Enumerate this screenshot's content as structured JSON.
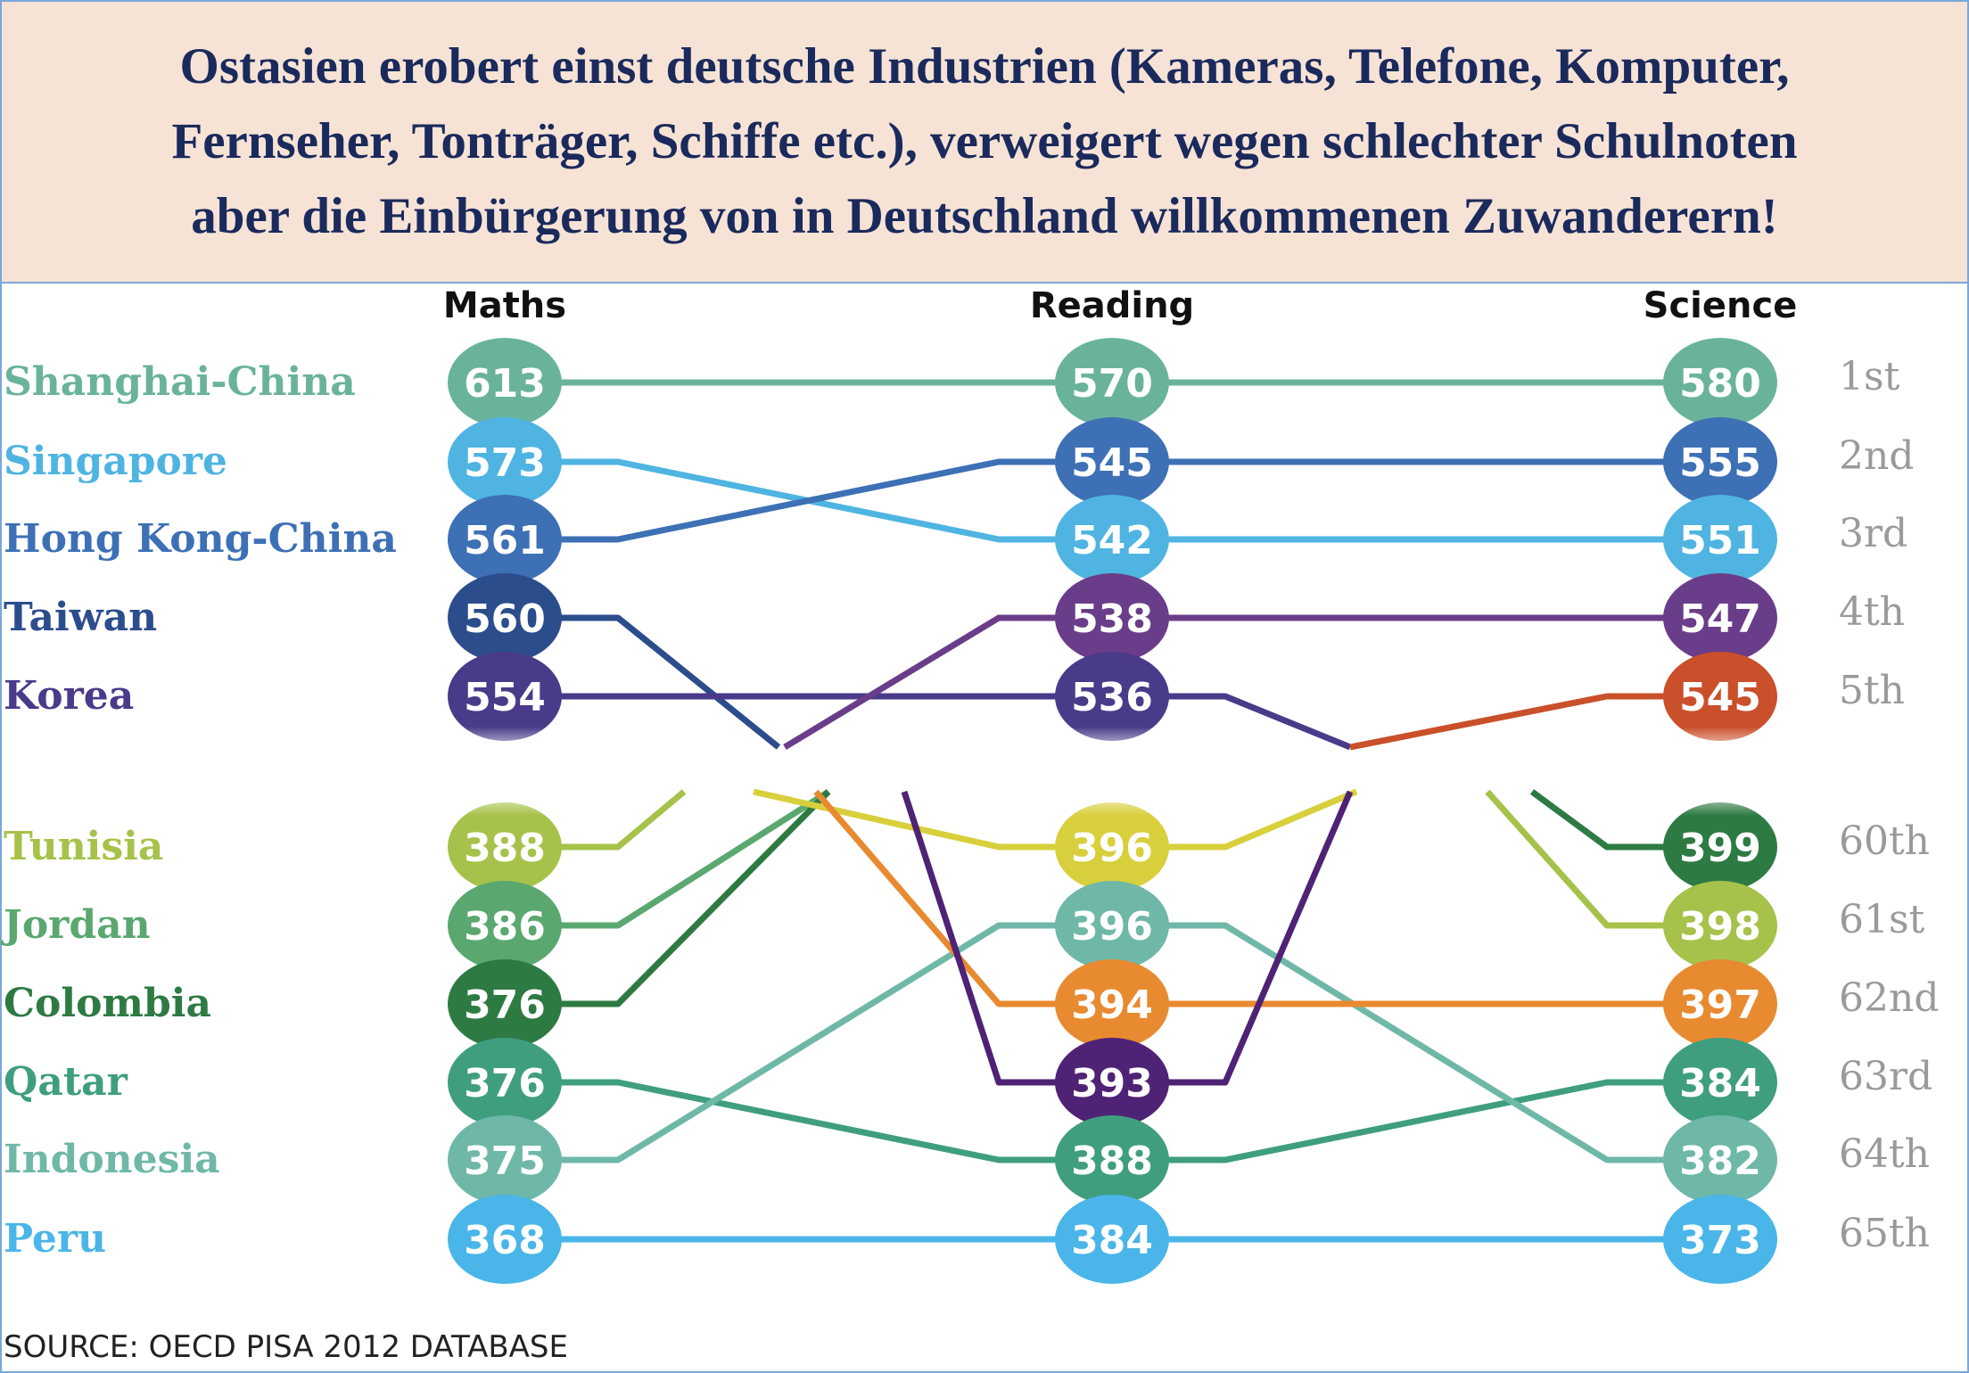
{
  "title_lines": [
    "Ostasien erobert einst deutsche Industrien (Kameras, Telefone, Komputer,",
    "Fernseher, Tonträger, Schiffe etc.), verweigert wegen schlechter Schulnoten",
    "aber die Einbürgerung von in Deutschland willkommenen Zuwanderern!"
  ],
  "chart_data": {
    "type": "bump",
    "columns": [
      "Maths",
      "Reading",
      "Science"
    ],
    "source": "SOURCE: OECD PISA 2012 DATABASE",
    "rows": [
      {
        "country": "Shanghai-China",
        "rank": "1st",
        "color": "#6ab39b"
      },
      {
        "country": "Singapore",
        "rank": "2nd",
        "color": "#4fb4e2"
      },
      {
        "country": "Hong Kong-China",
        "rank": "3rd",
        "color": "#3d70b5"
      },
      {
        "country": "Taiwan",
        "rank": "4th",
        "color": "#2c4d8c"
      },
      {
        "country": "Korea",
        "rank": "5th",
        "color": "#4a3a8a"
      },
      {
        "country": "Tunisia",
        "rank": "60th",
        "color": "#a6c24a"
      },
      {
        "country": "Jordan",
        "rank": "61st",
        "color": "#5aa870"
      },
      {
        "country": "Colombia",
        "rank": "62nd",
        "color": "#2e7a43"
      },
      {
        "country": "Qatar",
        "rank": "63rd",
        "color": "#3f9e7e"
      },
      {
        "country": "Indonesia",
        "rank": "64th",
        "color": "#6fb8a8"
      },
      {
        "country": "Peru",
        "rank": "65th",
        "color": "#4ab5e8"
      }
    ],
    "scores": [
      [
        {
          "v": 613,
          "c": "#6ab39b"
        },
        {
          "v": 573,
          "c": "#4fb4e2"
        },
        {
          "v": 561,
          "c": "#3d70b5"
        },
        {
          "v": 560,
          "c": "#2c4d8c"
        },
        {
          "v": 554,
          "c": "#4a3a8a"
        },
        {
          "v": 388,
          "c": "#a6c24a"
        },
        {
          "v": 386,
          "c": "#5aa870"
        },
        {
          "v": 376,
          "c": "#2e7a43"
        },
        {
          "v": 376,
          "c": "#3f9e7e"
        },
        {
          "v": 375,
          "c": "#6fb8a8"
        },
        {
          "v": 368,
          "c": "#4ab5e8"
        }
      ],
      [
        {
          "v": 570,
          "c": "#6ab39b"
        },
        {
          "v": 545,
          "c": "#3d70b5"
        },
        {
          "v": 542,
          "c": "#4fb4e2"
        },
        {
          "v": 538,
          "c": "#6a3d8a"
        },
        {
          "v": 536,
          "c": "#4a3a8a"
        },
        {
          "v": 396,
          "c": "#d8cf3c"
        },
        {
          "v": 396,
          "c": "#6fb8a8"
        },
        {
          "v": 394,
          "c": "#e88a30"
        },
        {
          "v": 393,
          "c": "#4e2275"
        },
        {
          "v": 388,
          "c": "#3f9e7e"
        },
        {
          "v": 384,
          "c": "#4ab5e8"
        }
      ],
      [
        {
          "v": 580,
          "c": "#6ab39b"
        },
        {
          "v": 555,
          "c": "#3d70b5"
        },
        {
          "v": 551,
          "c": "#4fb4e2"
        },
        {
          "v": 547,
          "c": "#6a3d8a"
        },
        {
          "v": 545,
          "c": "#c9502a"
        },
        {
          "v": 399,
          "c": "#2e7a43"
        },
        {
          "v": 398,
          "c": "#a6c24a"
        },
        {
          "v": 397,
          "c": "#e88a30"
        },
        {
          "v": 384,
          "c": "#3f9e7e"
        },
        {
          "v": 382,
          "c": "#6fb8a8"
        },
        {
          "v": 373,
          "c": "#4ab5e8"
        }
      ]
    ],
    "links": [
      {
        "from": [
          0,
          0
        ],
        "to": [
          1,
          0
        ],
        "c": "#6ab39b"
      },
      {
        "from": [
          1,
          0
        ],
        "to": [
          2,
          0
        ],
        "c": "#6ab39b"
      },
      {
        "from": [
          0,
          1
        ],
        "to": [
          1,
          2
        ],
        "c": "#4fb4e2"
      },
      {
        "from": [
          1,
          2
        ],
        "to": [
          2,
          2
        ],
        "c": "#4fb4e2"
      },
      {
        "from": [
          0,
          2
        ],
        "to": [
          1,
          1
        ],
        "c": "#3d70b5"
      },
      {
        "from": [
          1,
          1
        ],
        "to": [
          2,
          1
        ],
        "c": "#3d70b5"
      },
      {
        "from": [
          0,
          3
        ],
        "to": "gap",
        "c": "#2c4d8c"
      },
      {
        "from": [
          0,
          4
        ],
        "to": [
          1,
          4
        ],
        "c": "#4a3a8a"
      },
      {
        "from": [
          1,
          4
        ],
        "to": "gap",
        "c": "#4a3a8a"
      },
      {
        "from": "gap",
        "to": [
          1,
          3
        ],
        "c": "#6a3d8a"
      },
      {
        "from": [
          1,
          3
        ],
        "to": [
          2,
          3
        ],
        "c": "#6a3d8a"
      },
      {
        "from": "gap",
        "to": [
          2,
          4
        ],
        "c": "#c9502a"
      },
      {
        "from": [
          0,
          5
        ],
        "to": "gap",
        "c": "#a6c24a"
      },
      {
        "from": "gap",
        "to": [
          2,
          6
        ],
        "c": "#a6c24a"
      },
      {
        "from": [
          0,
          6
        ],
        "to": "gap",
        "c": "#5aa870"
      },
      {
        "from": [
          0,
          7
        ],
        "to": "gap",
        "c": "#2e7a43"
      },
      {
        "from": "gap",
        "to": [
          2,
          5
        ],
        "c": "#2e7a43"
      },
      {
        "from": [
          0,
          8
        ],
        "to": [
          1,
          9
        ],
        "c": "#3f9e7e"
      },
      {
        "from": [
          1,
          9
        ],
        "to": [
          2,
          8
        ],
        "c": "#3f9e7e"
      },
      {
        "from": [
          0,
          9
        ],
        "to": [
          1,
          6
        ],
        "c": "#6fb8a8"
      },
      {
        "from": [
          1,
          6
        ],
        "to": [
          2,
          9
        ],
        "c": "#6fb8a8"
      },
      {
        "from": [
          0,
          10
        ],
        "to": [
          1,
          10
        ],
        "c": "#4ab5e8"
      },
      {
        "from": [
          1,
          10
        ],
        "to": [
          2,
          10
        ],
        "c": "#4ab5e8"
      },
      {
        "from": "gap",
        "to": [
          1,
          5
        ],
        "c": "#d8cf3c"
      },
      {
        "from": [
          1,
          5
        ],
        "to": "gap",
        "c": "#d8cf3c"
      },
      {
        "from": "gap",
        "to": [
          1,
          7
        ],
        "c": "#e88a30"
      },
      {
        "from": [
          1,
          7
        ],
        "to": [
          2,
          7
        ],
        "c": "#e88a30"
      },
      {
        "from": "gap",
        "to": [
          1,
          8
        ],
        "c": "#4e2275"
      },
      {
        "from": [
          1,
          8
        ],
        "to": "gap",
        "c": "#4e2275"
      }
    ]
  }
}
